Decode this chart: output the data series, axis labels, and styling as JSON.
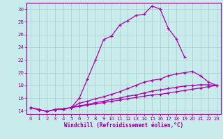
{
  "xlabel": "Windchill (Refroidissement éolien,°C)",
  "bg_color": "#c8ecec",
  "line_color": "#aa00aa",
  "grid_color": "#aacccc",
  "axis_color": "#880088",
  "xlim": [
    -0.5,
    23.5
  ],
  "ylim": [
    13.5,
    31.0
  ],
  "yticks": [
    14,
    16,
    18,
    20,
    22,
    24,
    26,
    28,
    30
  ],
  "xticks": [
    0,
    1,
    2,
    3,
    4,
    5,
    6,
    7,
    8,
    9,
    10,
    11,
    12,
    13,
    14,
    15,
    16,
    17,
    18,
    19,
    20,
    21,
    22,
    23
  ],
  "series": [
    [
      14.5,
      14.2,
      13.9,
      14.2,
      14.3,
      14.5,
      16.0,
      19.0,
      22.0,
      25.2,
      25.8,
      27.5,
      28.2,
      29.0,
      29.2,
      30.5,
      30.0,
      27.0,
      25.3,
      22.5,
      null,
      null,
      null,
      null
    ],
    [
      14.5,
      14.2,
      13.9,
      14.2,
      14.3,
      14.5,
      15.2,
      15.5,
      15.9,
      16.2,
      16.6,
      17.0,
      17.5,
      18.0,
      18.5,
      18.8,
      19.0,
      19.5,
      19.8,
      20.0,
      20.2,
      19.5,
      18.5,
      18.0
    ],
    [
      14.5,
      14.2,
      13.9,
      14.2,
      14.3,
      14.5,
      14.8,
      15.0,
      15.3,
      15.5,
      15.8,
      16.0,
      16.3,
      16.5,
      16.8,
      17.1,
      17.3,
      17.5,
      17.7,
      17.9,
      18.0,
      18.1,
      18.1,
      18.0
    ],
    [
      14.5,
      14.2,
      13.9,
      14.2,
      14.3,
      14.5,
      14.7,
      14.9,
      15.1,
      15.3,
      15.5,
      15.7,
      15.9,
      16.1,
      16.3,
      16.5,
      16.6,
      16.8,
      17.0,
      17.2,
      17.4,
      17.6,
      17.8,
      18.0
    ]
  ],
  "marker_size": 3.5,
  "linewidth": 0.9
}
